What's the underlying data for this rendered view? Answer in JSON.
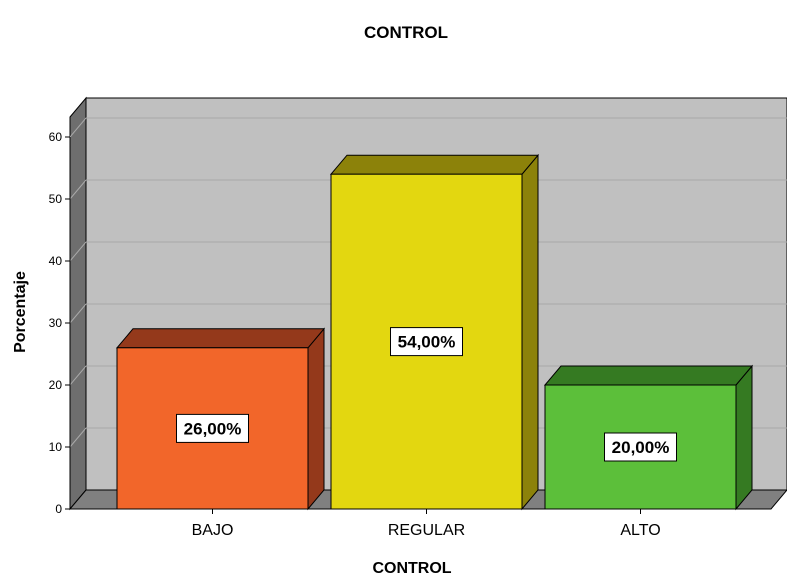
{
  "chart_data": {
    "type": "bar",
    "title": "CONTROL",
    "xlabel": "CONTROL",
    "ylabel": "Porcentaje",
    "ylim": [
      0,
      60
    ],
    "yticks": [
      "0",
      "10",
      "20",
      "30",
      "40",
      "50",
      "60"
    ],
    "categories": [
      "BAJO",
      "REGULAR",
      "ALTO"
    ],
    "values": [
      26,
      54,
      20
    ],
    "data_labels": [
      "26,00%",
      "54,00%",
      "20,00%"
    ],
    "colors": [
      "#f2662a",
      "#e3d710",
      "#5cbf3a"
    ],
    "side_colors": [
      "#94391b",
      "#8c820a",
      "#357a22"
    ],
    "background": "#c0c0c0",
    "floor": "#808080",
    "grid": true,
    "legend": "none"
  }
}
